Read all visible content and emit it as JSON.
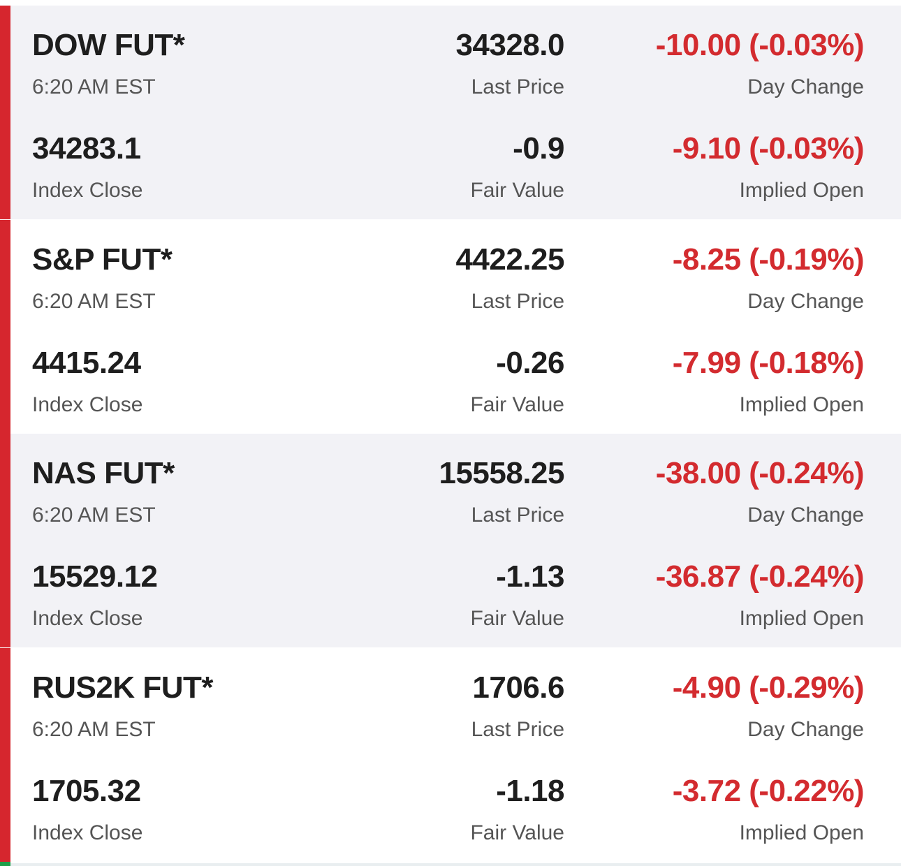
{
  "colors": {
    "accent_red": "#d6262e",
    "negative_text": "#d32b2f",
    "shaded_bg": "#f2f2f6",
    "primary_text": "#1e1e1e",
    "secondary_text": "#555555"
  },
  "futures": [
    {
      "name": "DOW FUT*",
      "time": "6:20 AM EST",
      "last_price": "34328.0",
      "last_price_label": "Last Price",
      "day_change": "-10.00 (-0.03%)",
      "day_change_label": "Day Change",
      "index_close": "34283.1",
      "index_close_label": "Index Close",
      "fair_value": "-0.9",
      "fair_value_label": "Fair Value",
      "implied_open": "-9.10 (-0.03%)",
      "implied_open_label": "Implied Open"
    },
    {
      "name": "S&P FUT*",
      "time": "6:20 AM EST",
      "last_price": "4422.25",
      "last_price_label": "Last Price",
      "day_change": "-8.25 (-0.19%)",
      "day_change_label": "Day Change",
      "index_close": "4415.24",
      "index_close_label": "Index Close",
      "fair_value": "-0.26",
      "fair_value_label": "Fair Value",
      "implied_open": "-7.99 (-0.18%)",
      "implied_open_label": "Implied Open"
    },
    {
      "name": "NAS FUT*",
      "time": "6:20 AM EST",
      "last_price": "15558.25",
      "last_price_label": "Last Price",
      "day_change": "-38.00 (-0.24%)",
      "day_change_label": "Day Change",
      "index_close": "15529.12",
      "index_close_label": "Index Close",
      "fair_value": "-1.13",
      "fair_value_label": "Fair Value",
      "implied_open": "-36.87 (-0.24%)",
      "implied_open_label": "Implied Open"
    },
    {
      "name": "RUS2K FUT*",
      "time": "6:20 AM EST",
      "last_price": "1706.6",
      "last_price_label": "Last Price",
      "day_change": "-4.90 (-0.29%)",
      "day_change_label": "Day Change",
      "index_close": "1705.32",
      "index_close_label": "Index Close",
      "fair_value": "-1.18",
      "fair_value_label": "Fair Value",
      "implied_open": "-3.72 (-0.22%)",
      "implied_open_label": "Implied Open"
    }
  ]
}
